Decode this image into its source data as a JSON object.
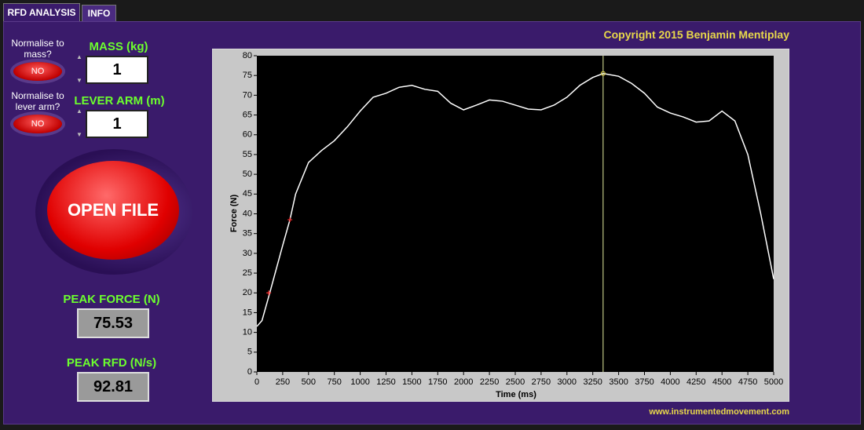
{
  "tabs": [
    "RFD ANALYSIS",
    "INFO"
  ],
  "copyright": "Copyright 2015 Benjamin Mentiplay",
  "website": "www.instrumentedmovement.com",
  "normalise_mass": {
    "label": "Normalise to mass?",
    "button": "NO"
  },
  "normalise_lever": {
    "label": "Normalise to lever arm?",
    "button": "NO"
  },
  "mass": {
    "label": "MASS (kg)",
    "value": 1
  },
  "lever_arm": {
    "label": "LEVER ARM (m)",
    "value": 1
  },
  "open_file": "OPEN FILE",
  "peak_force": {
    "label": "PEAK FORCE (N)",
    "value": 75.53
  },
  "peak_rfd": {
    "label": "PEAK RFD (N/s)",
    "value": 92.81
  },
  "chart_data": {
    "type": "line",
    "xlabel": "Time (ms)",
    "ylabel": "Force (N)",
    "x": [
      0,
      50,
      125,
      250,
      320,
      375,
      500,
      625,
      750,
      875,
      1000,
      1125,
      1250,
      1375,
      1500,
      1625,
      1750,
      1875,
      2000,
      2125,
      2250,
      2375,
      2500,
      2625,
      2750,
      2875,
      3000,
      3125,
      3250,
      3350,
      3500,
      3625,
      3750,
      3875,
      4000,
      4125,
      4250,
      4375,
      4500,
      4625,
      4750,
      4875,
      5000
    ],
    "series": [
      {
        "color": "#ffffff",
        "values": [
          11.5,
          13,
          20,
          32,
          38.5,
          45,
          53,
          56,
          58.5,
          62,
          66,
          69.5,
          70.5,
          72,
          72.5,
          71.5,
          71,
          68,
          66.3,
          67.5,
          68.8,
          68.5,
          67.5,
          66.5,
          66.3,
          67.5,
          69.5,
          72.5,
          74.5,
          75.5,
          74.8,
          73,
          70.5,
          67,
          65.5,
          64.5,
          63.2,
          63.5,
          66,
          63.5,
          55,
          40,
          23.5
        ]
      }
    ],
    "markers": {
      "color": "#ff3030",
      "x": [
        115,
        320
      ],
      "values": [
        20,
        38.5
      ]
    },
    "cursor": {
      "color": "#e6f0a0",
      "x": 3350,
      "value": 75.5
    },
    "xlim": [
      0,
      5000
    ],
    "ylim": [
      0,
      80
    ],
    "xticks": [
      0,
      250,
      500,
      750,
      1000,
      1250,
      1500,
      1750,
      2000,
      2250,
      2500,
      2750,
      3000,
      3250,
      3500,
      3750,
      4000,
      4250,
      4500,
      4750,
      5000
    ],
    "yticks": [
      0,
      5,
      10,
      15,
      20,
      25,
      30,
      35,
      40,
      45,
      50,
      55,
      60,
      65,
      70,
      75,
      80
    ]
  }
}
